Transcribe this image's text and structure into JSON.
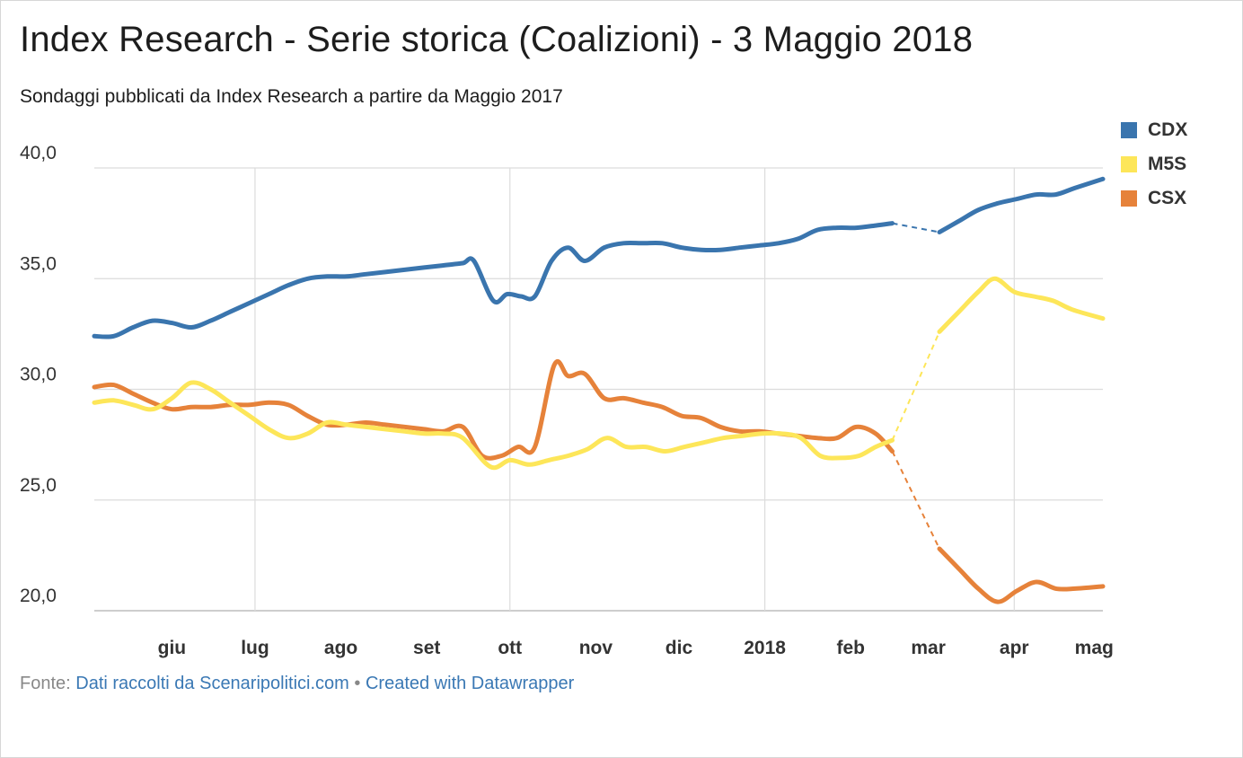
{
  "title": "Index Research - Serie storica (Coalizioni) - 3 Maggio 2018",
  "subtitle": "Sondaggi pubblicati da Index Research a partire da Maggio 2017",
  "footer": {
    "source_prefix": "Fonte:",
    "source_link": "Dati raccolti da Scenaripolitici.com",
    "separator": "•",
    "credit_link": "Created with Datawrapper"
  },
  "chart_data": {
    "type": "line",
    "title": "Index Research - Serie storica (Coalizioni) - 3 Maggio 2018",
    "subtitle": "Sondaggi pubblicati da Index Research a partire da Maggio 2017",
    "xlabel": "",
    "ylabel": "",
    "xlim": [
      "2017-05-04",
      "2018-05-03"
    ],
    "ylim": [
      20,
      40
    ],
    "y_ticks": [
      {
        "value": 20,
        "label": "20,0"
      },
      {
        "value": 25,
        "label": "25,0"
      },
      {
        "value": 30,
        "label": "30,0"
      },
      {
        "value": 35,
        "label": "35,0"
      },
      {
        "value": 40,
        "label": "40,0"
      }
    ],
    "x_ticks": [
      {
        "date": "2017-06-01",
        "label": "giu"
      },
      {
        "date": "2017-07-01",
        "label": "lug"
      },
      {
        "date": "2017-08-01",
        "label": "ago"
      },
      {
        "date": "2017-09-01",
        "label": "set"
      },
      {
        "date": "2017-10-01",
        "label": "ott"
      },
      {
        "date": "2017-11-01",
        "label": "nov"
      },
      {
        "date": "2017-12-01",
        "label": "dic"
      },
      {
        "date": "2018-01-01",
        "label": "2018"
      },
      {
        "date": "2018-02-01",
        "label": "feb"
      },
      {
        "date": "2018-03-01",
        "label": "mar"
      },
      {
        "date": "2018-04-01",
        "label": "apr"
      },
      {
        "date": "2018-05-01",
        "label": "mag"
      }
    ],
    "grid": {
      "horizontal": true,
      "vertical": true
    },
    "legend": "right",
    "gap": {
      "from": "2018-02-16",
      "to": "2018-03-05",
      "style": "dashed"
    },
    "series": [
      {
        "name": "CDX",
        "color": "#3a75ae",
        "points": [
          [
            "2017-05-04",
            32.4
          ],
          [
            "2017-05-11",
            32.4
          ],
          [
            "2017-05-18",
            32.8
          ],
          [
            "2017-05-25",
            33.1
          ],
          [
            "2017-06-01",
            33.0
          ],
          [
            "2017-06-08",
            32.8
          ],
          [
            "2017-06-15",
            33.1
          ],
          [
            "2017-06-22",
            33.5
          ],
          [
            "2017-06-29",
            33.9
          ],
          [
            "2017-07-06",
            34.3
          ],
          [
            "2017-07-13",
            34.7
          ],
          [
            "2017-07-20",
            35.0
          ],
          [
            "2017-07-27",
            35.1
          ],
          [
            "2017-08-03",
            35.1
          ],
          [
            "2017-08-10",
            35.2
          ],
          [
            "2017-08-17",
            35.3
          ],
          [
            "2017-08-24",
            35.4
          ],
          [
            "2017-08-31",
            35.5
          ],
          [
            "2017-09-07",
            35.6
          ],
          [
            "2017-09-14",
            35.7
          ],
          [
            "2017-09-18",
            35.8
          ],
          [
            "2017-09-25",
            34.0
          ],
          [
            "2017-09-30",
            34.3
          ],
          [
            "2017-10-05",
            34.2
          ],
          [
            "2017-10-10",
            34.2
          ],
          [
            "2017-10-16",
            35.8
          ],
          [
            "2017-10-22",
            36.4
          ],
          [
            "2017-10-28",
            35.8
          ],
          [
            "2017-11-04",
            36.4
          ],
          [
            "2017-11-11",
            36.6
          ],
          [
            "2017-11-18",
            36.6
          ],
          [
            "2017-11-25",
            36.6
          ],
          [
            "2017-12-02",
            36.4
          ],
          [
            "2017-12-09",
            36.3
          ],
          [
            "2017-12-16",
            36.3
          ],
          [
            "2017-12-23",
            36.4
          ],
          [
            "2017-12-30",
            36.5
          ],
          [
            "2018-01-06",
            36.6
          ],
          [
            "2018-01-13",
            36.8
          ],
          [
            "2018-01-20",
            37.2
          ],
          [
            "2018-01-27",
            37.3
          ],
          [
            "2018-02-03",
            37.3
          ],
          [
            "2018-02-10",
            37.4
          ],
          [
            "2018-02-16",
            37.5
          ],
          [
            "2018-03-05",
            37.1
          ],
          [
            "2018-03-12",
            37.6
          ],
          [
            "2018-03-19",
            38.1
          ],
          [
            "2018-03-26",
            38.4
          ],
          [
            "2018-04-02",
            38.6
          ],
          [
            "2018-04-09",
            38.8
          ],
          [
            "2018-04-16",
            38.8
          ],
          [
            "2018-04-23",
            39.1
          ],
          [
            "2018-05-03",
            39.5
          ]
        ]
      },
      {
        "name": "M5S",
        "color": "#fde659",
        "points": [
          [
            "2017-05-04",
            29.4
          ],
          [
            "2017-05-11",
            29.5
          ],
          [
            "2017-05-18",
            29.3
          ],
          [
            "2017-05-25",
            29.1
          ],
          [
            "2017-06-01",
            29.6
          ],
          [
            "2017-06-08",
            30.3
          ],
          [
            "2017-06-15",
            30.0
          ],
          [
            "2017-06-22",
            29.4
          ],
          [
            "2017-06-29",
            28.8
          ],
          [
            "2017-07-06",
            28.2
          ],
          [
            "2017-07-13",
            27.8
          ],
          [
            "2017-07-20",
            28.0
          ],
          [
            "2017-07-27",
            28.5
          ],
          [
            "2017-08-03",
            28.4
          ],
          [
            "2017-08-10",
            28.3
          ],
          [
            "2017-08-17",
            28.2
          ],
          [
            "2017-08-24",
            28.1
          ],
          [
            "2017-08-31",
            28.0
          ],
          [
            "2017-09-07",
            28.0
          ],
          [
            "2017-09-14",
            27.8
          ],
          [
            "2017-09-24",
            26.5
          ],
          [
            "2017-10-01",
            26.8
          ],
          [
            "2017-10-08",
            26.6
          ],
          [
            "2017-10-15",
            26.8
          ],
          [
            "2017-10-22",
            27.0
          ],
          [
            "2017-10-29",
            27.3
          ],
          [
            "2017-11-05",
            27.8
          ],
          [
            "2017-11-12",
            27.4
          ],
          [
            "2017-11-19",
            27.4
          ],
          [
            "2017-11-26",
            27.2
          ],
          [
            "2017-12-03",
            27.4
          ],
          [
            "2017-12-10",
            27.6
          ],
          [
            "2017-12-17",
            27.8
          ],
          [
            "2017-12-24",
            27.9
          ],
          [
            "2017-12-31",
            28.0
          ],
          [
            "2018-01-07",
            28.0
          ],
          [
            "2018-01-14",
            27.8
          ],
          [
            "2018-01-21",
            27.0
          ],
          [
            "2018-01-28",
            26.9
          ],
          [
            "2018-02-04",
            27.0
          ],
          [
            "2018-02-10",
            27.4
          ],
          [
            "2018-02-16",
            27.7
          ],
          [
            "2018-03-05",
            32.6
          ],
          [
            "2018-03-12",
            33.5
          ],
          [
            "2018-03-19",
            34.4
          ],
          [
            "2018-03-25",
            35.0
          ],
          [
            "2018-04-01",
            34.4
          ],
          [
            "2018-04-08",
            34.2
          ],
          [
            "2018-04-15",
            34.0
          ],
          [
            "2018-04-22",
            33.6
          ],
          [
            "2018-05-03",
            33.2
          ]
        ]
      },
      {
        "name": "CSX",
        "color": "#e6823a",
        "points": [
          [
            "2017-05-04",
            30.1
          ],
          [
            "2017-05-11",
            30.2
          ],
          [
            "2017-05-18",
            29.8
          ],
          [
            "2017-05-25",
            29.4
          ],
          [
            "2017-06-01",
            29.1
          ],
          [
            "2017-06-08",
            29.2
          ],
          [
            "2017-06-15",
            29.2
          ],
          [
            "2017-06-22",
            29.3
          ],
          [
            "2017-06-29",
            29.3
          ],
          [
            "2017-07-06",
            29.4
          ],
          [
            "2017-07-13",
            29.3
          ],
          [
            "2017-07-20",
            28.8
          ],
          [
            "2017-07-27",
            28.4
          ],
          [
            "2017-08-03",
            28.4
          ],
          [
            "2017-08-10",
            28.5
          ],
          [
            "2017-08-17",
            28.4
          ],
          [
            "2017-08-24",
            28.3
          ],
          [
            "2017-08-31",
            28.2
          ],
          [
            "2017-09-07",
            28.1
          ],
          [
            "2017-09-14",
            28.3
          ],
          [
            "2017-09-21",
            27.0
          ],
          [
            "2017-09-28",
            27.0
          ],
          [
            "2017-10-04",
            27.4
          ],
          [
            "2017-10-10",
            27.4
          ],
          [
            "2017-10-17",
            31.1
          ],
          [
            "2017-10-22",
            30.6
          ],
          [
            "2017-10-28",
            30.7
          ],
          [
            "2017-11-04",
            29.6
          ],
          [
            "2017-11-11",
            29.6
          ],
          [
            "2017-11-18",
            29.4
          ],
          [
            "2017-11-25",
            29.2
          ],
          [
            "2017-12-02",
            28.8
          ],
          [
            "2017-12-09",
            28.7
          ],
          [
            "2017-12-16",
            28.3
          ],
          [
            "2017-12-23",
            28.1
          ],
          [
            "2017-12-30",
            28.1
          ],
          [
            "2018-01-06",
            28.0
          ],
          [
            "2018-01-13",
            27.9
          ],
          [
            "2018-01-20",
            27.8
          ],
          [
            "2018-01-27",
            27.8
          ],
          [
            "2018-02-03",
            28.3
          ],
          [
            "2018-02-10",
            28.0
          ],
          [
            "2018-02-16",
            27.2
          ],
          [
            "2018-03-05",
            22.8
          ],
          [
            "2018-03-12",
            21.9
          ],
          [
            "2018-03-19",
            21.0
          ],
          [
            "2018-03-26",
            20.4
          ],
          [
            "2018-04-02",
            20.9
          ],
          [
            "2018-04-09",
            21.3
          ],
          [
            "2018-04-16",
            21.0
          ],
          [
            "2018-04-23",
            21.0
          ],
          [
            "2018-05-03",
            21.1
          ]
        ]
      }
    ]
  }
}
